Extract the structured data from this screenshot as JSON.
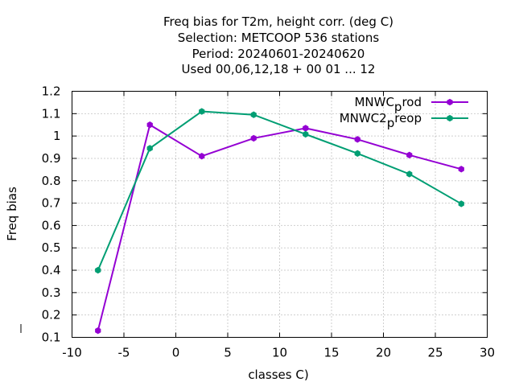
{
  "chart_data": {
    "type": "line",
    "title_lines": [
      "Freq bias  for T2m, height corr. (deg C)",
      "Selection: METCOOP    536 stations",
      "Period: 20240601-20240620",
      "Used  00,06,12,18 + 00 01 ... 12"
    ],
    "xlabel": "classes C)",
    "ylabel": "Freq bias",
    "xlim": [
      -10,
      30
    ],
    "ylim": [
      0.1,
      1.2
    ],
    "xticks": [
      -10,
      -5,
      0,
      5,
      10,
      15,
      20,
      25,
      30
    ],
    "xtick_labels": [
      "-10",
      "-5",
      "0",
      "5",
      "10",
      "15",
      "20",
      "25",
      "30"
    ],
    "yticks": [
      0.1,
      0.2,
      0.3,
      0.4,
      0.5,
      0.6,
      0.7,
      0.8,
      0.9,
      1.0,
      1.1,
      1.2
    ],
    "ytick_labels": [
      "0.1",
      "0.2",
      "0.3",
      "0.4",
      "0.5",
      "0.6",
      "0.7",
      "0.8",
      "0.9",
      "1",
      "1.1",
      "1.2"
    ],
    "grid": true,
    "legend_position": "top-right",
    "series": [
      {
        "name": "MNWC_prod",
        "legend_main": "MNWC",
        "legend_sub": "p",
        "legend_tail": "rod",
        "color": "#9400d3",
        "x": [
          -7.5,
          -2.5,
          2.5,
          7.5,
          12.5,
          17.5,
          22.5,
          27.5
        ],
        "y": [
          0.13,
          1.05,
          0.91,
          0.99,
          1.035,
          0.985,
          0.915,
          0.852
        ]
      },
      {
        "name": "MNWC2_preop",
        "legend_main": "MNWC2",
        "legend_sub": "p",
        "legend_tail": "reop",
        "color": "#009e73",
        "x": [
          -7.5,
          -2.5,
          2.5,
          7.5,
          12.5,
          17.5,
          22.5,
          27.5
        ],
        "y": [
          0.4,
          0.945,
          1.11,
          1.095,
          1.008,
          0.922,
          0.83,
          0.697
        ]
      }
    ]
  }
}
